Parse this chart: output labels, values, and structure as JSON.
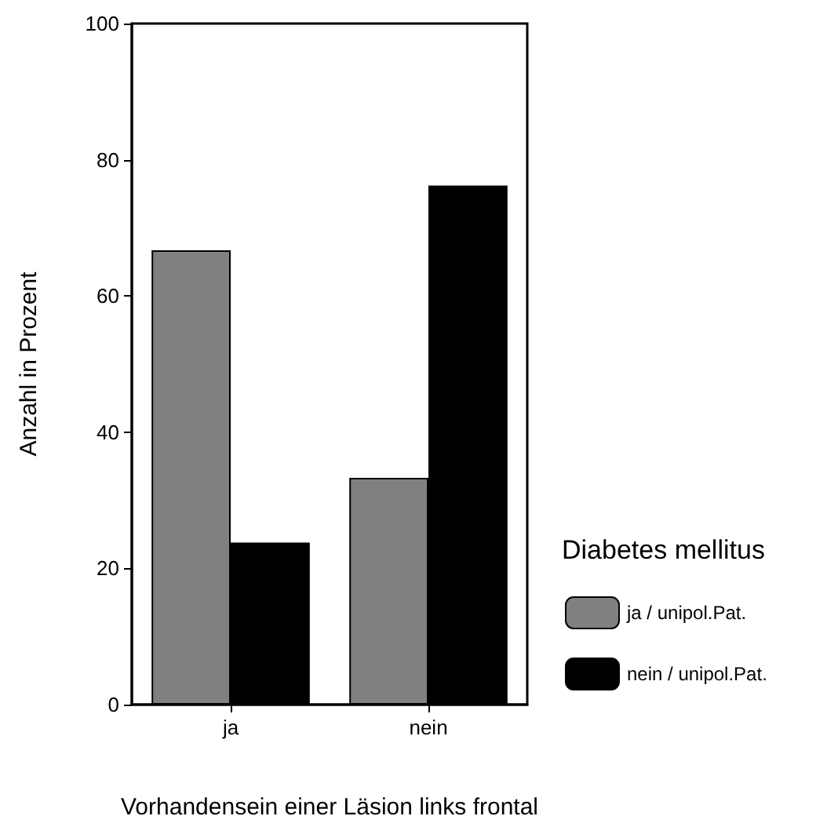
{
  "chart_data": {
    "type": "bar",
    "xlabel": "Vorhandensein einer Läsion links frontal",
    "ylabel": "Anzahl in Prozent",
    "legend_title": "Diabetes mellitus",
    "categories": [
      "ja",
      "nein"
    ],
    "series": [
      {
        "name": "ja / unipol.Pat.",
        "color": "#808080",
        "values": [
          66.7,
          33.3
        ]
      },
      {
        "name": "nein / unipol.Pat.",
        "color": "#000000",
        "values": [
          23.8,
          76.2
        ]
      }
    ],
    "ylim": [
      0,
      100
    ],
    "yticks": [
      0,
      20,
      40,
      60,
      80,
      100
    ],
    "grid": false,
    "legend": "right"
  }
}
